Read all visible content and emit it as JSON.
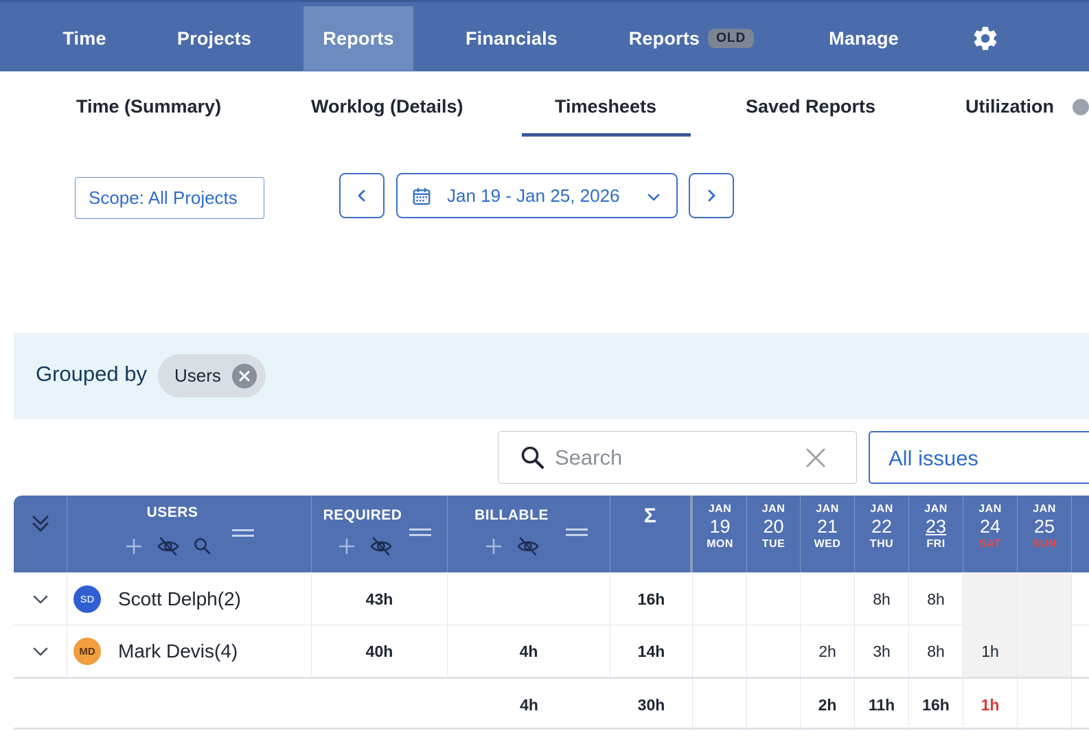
{
  "topnav": {
    "items": [
      {
        "label": "Time"
      },
      {
        "label": "Projects"
      },
      {
        "label": "Reports",
        "active": true
      },
      {
        "label": "Financials"
      },
      {
        "label": "Reports",
        "badge": "OLD"
      },
      {
        "label": "Manage"
      }
    ],
    "settings_icon": "gear-icon",
    "bar_color": "#4b6cab"
  },
  "subtabs": {
    "items": [
      {
        "label": "Time (Summary)"
      },
      {
        "label": "Worklog (Details)"
      },
      {
        "label": "Timesheets",
        "active": true
      },
      {
        "label": "Saved Reports"
      },
      {
        "label": "Utilization"
      }
    ]
  },
  "controls": {
    "scope_label": "Scope: All Projects",
    "date_range": "Jan 19 - Jan 25, 2026",
    "prev_icon": "chevron-left-icon",
    "next_icon": "chevron-right-icon",
    "calendar_icon": "calendar-icon"
  },
  "grouping": {
    "label": "Grouped by",
    "chip": "Users"
  },
  "search": {
    "placeholder": "Search",
    "value": ""
  },
  "filter": {
    "selected": "All issues"
  },
  "table": {
    "columns": {
      "users": "USERS",
      "required": "REQUIRED",
      "billable": "BILLABLE",
      "sum": "Σ"
    },
    "days": [
      {
        "month": "JAN",
        "day": "19",
        "weekday": "MON"
      },
      {
        "month": "JAN",
        "day": "20",
        "weekday": "TUE"
      },
      {
        "month": "JAN",
        "day": "21",
        "weekday": "WED"
      },
      {
        "month": "JAN",
        "day": "22",
        "weekday": "THU"
      },
      {
        "month": "JAN",
        "day": "23",
        "weekday": "FRI",
        "today": true
      },
      {
        "month": "JAN",
        "day": "24",
        "weekday": "SAT",
        "weekend": true
      },
      {
        "month": "JAN",
        "day": "25",
        "weekday": "SUN",
        "weekend": true
      }
    ],
    "rows": [
      {
        "initials": "SD",
        "avatar_color": "#2f5fd0",
        "name": "Scott Delph(2)",
        "required": "43h",
        "billable": "",
        "sum": "16h",
        "days": [
          "",
          "",
          "",
          "8h",
          "8h",
          "",
          ""
        ]
      },
      {
        "initials": "MD",
        "avatar_color": "#f0a040",
        "name": "Mark Devis(4)",
        "required": "40h",
        "billable": "4h",
        "sum": "14h",
        "days": [
          "",
          "",
          "2h",
          "3h",
          "8h",
          "1h",
          ""
        ]
      }
    ],
    "totals": {
      "billable": "4h",
      "sum": "30h",
      "days": [
        "",
        "",
        "2h",
        "11h",
        "16h",
        "1h",
        ""
      ]
    }
  }
}
